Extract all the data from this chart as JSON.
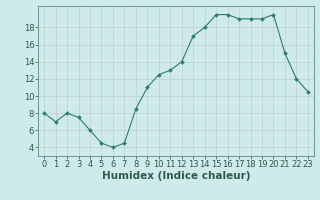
{
  "x": [
    0,
    1,
    2,
    3,
    4,
    5,
    6,
    7,
    8,
    9,
    10,
    11,
    12,
    13,
    14,
    15,
    16,
    17,
    18,
    19,
    20,
    21,
    22,
    23
  ],
  "y": [
    8,
    7,
    8,
    7.5,
    6,
    4.5,
    4,
    4.5,
    8.5,
    11,
    12.5,
    13,
    14,
    17,
    18,
    19.5,
    19.5,
    19,
    19,
    19,
    19.5,
    15,
    12,
    10.5
  ],
  "line_color": "#2e7d6e",
  "marker": "D",
  "marker_size": 2.0,
  "bg_color": "#ceeae9",
  "grid_color": "#c0d0d0",
  "xlabel": "Humidex (Indice chaleur)",
  "xlabel_fontsize": 7.5,
  "tick_fontsize": 6.0,
  "xlim": [
    -0.5,
    23.5
  ],
  "ylim": [
    3,
    20.5
  ],
  "yticks": [
    4,
    6,
    8,
    10,
    12,
    14,
    16,
    18
  ],
  "xticks": [
    0,
    1,
    2,
    3,
    4,
    5,
    6,
    7,
    8,
    9,
    10,
    11,
    12,
    13,
    14,
    15,
    16,
    17,
    18,
    19,
    20,
    21,
    22,
    23
  ]
}
